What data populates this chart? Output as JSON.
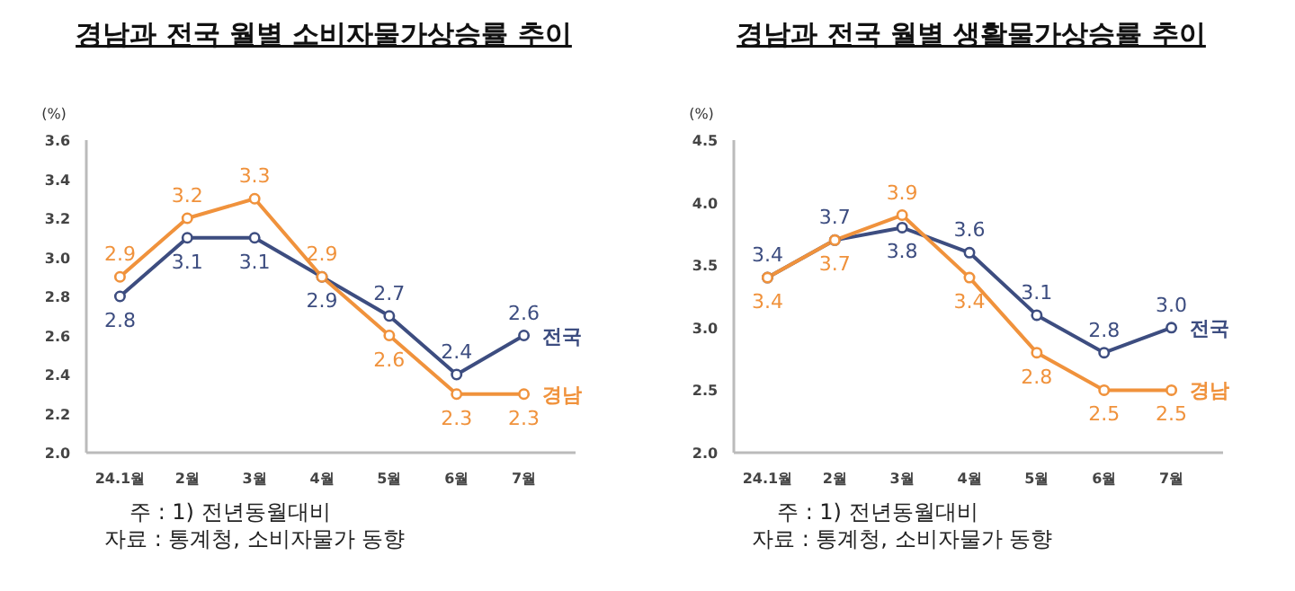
{
  "chart_data": [
    {
      "type": "line",
      "title": "경남과 전국 월별 소비자물가상승률 추이",
      "ylabel": "(%)",
      "categories": [
        "24.1월",
        "2월",
        "3월",
        "4월",
        "5월",
        "6월",
        "7월"
      ],
      "series": [
        {
          "name": "전국",
          "color": "#3d4d80",
          "values": [
            2.8,
            3.1,
            3.1,
            2.9,
            2.7,
            2.4,
            2.6
          ],
          "value_labels": [
            "2.8",
            "3.1",
            "3.1",
            "2.9",
            "2.7",
            "2.4",
            "2.6"
          ]
        },
        {
          "name": "경남",
          "color": "#f0923c",
          "values": [
            2.9,
            3.2,
            3.3,
            2.9,
            2.6,
            2.3,
            2.3
          ],
          "value_labels": [
            "2.9",
            "3.2",
            "3.3",
            "2.9",
            "2.6",
            "2.3",
            "2.3"
          ]
        }
      ],
      "ylim": [
        2.0,
        3.6
      ],
      "yticks": [
        {
          "value": 2.0,
          "label": "2.0"
        },
        {
          "value": 2.2,
          "label": "2.2"
        },
        {
          "value": 2.4,
          "label": "2.4"
        },
        {
          "value": 2.6,
          "label": "2.6"
        },
        {
          "value": 2.8,
          "label": "2.8"
        },
        {
          "value": 3.0,
          "label": "3.0"
        },
        {
          "value": 3.2,
          "label": "3.2"
        },
        {
          "value": 3.4,
          "label": "3.4"
        },
        {
          "value": 3.6,
          "label": "3.6"
        }
      ],
      "marker": "circle",
      "line_style": "solid",
      "grid": false,
      "annotations": [
        "주 : 1) 전년동월대비",
        "자료 : 통계청, 소비자물가 동향"
      ]
    },
    {
      "type": "line",
      "title": "경남과 전국 월별 생활물가상승률 추이",
      "ylabel": "(%)",
      "categories": [
        "24.1월",
        "2월",
        "3월",
        "4월",
        "5월",
        "6월",
        "7월"
      ],
      "series": [
        {
          "name": "전국",
          "color": "#3d4d80",
          "values": [
            3.4,
            3.7,
            3.8,
            3.6,
            3.1,
            2.8,
            3.0
          ],
          "value_labels": [
            "3.4",
            "3.7",
            "3.8",
            "3.6",
            "3.1",
            "2.8",
            "3.0"
          ]
        },
        {
          "name": "경남",
          "color": "#f0923c",
          "values": [
            3.4,
            3.7,
            3.9,
            3.4,
            2.8,
            2.5,
            2.5
          ],
          "value_labels": [
            "3.4",
            "3.7",
            "3.9",
            "3.4",
            "2.8",
            "2.5",
            "2.5"
          ]
        }
      ],
      "ylim": [
        2.0,
        4.5
      ],
      "yticks": [
        {
          "value": 2.0,
          "label": "2.0"
        },
        {
          "value": 2.5,
          "label": "2.5"
        },
        {
          "value": 3.0,
          "label": "3.0"
        },
        {
          "value": 3.5,
          "label": "3.5"
        },
        {
          "value": 4.0,
          "label": "4.0"
        },
        {
          "value": 4.5,
          "label": "4.5"
        }
      ],
      "marker": "circle",
      "line_style": "solid",
      "grid": false,
      "annotations": [
        "주 : 1) 전년동월대비",
        "자료 : 통계청, 소비자물가 동향"
      ]
    }
  ]
}
